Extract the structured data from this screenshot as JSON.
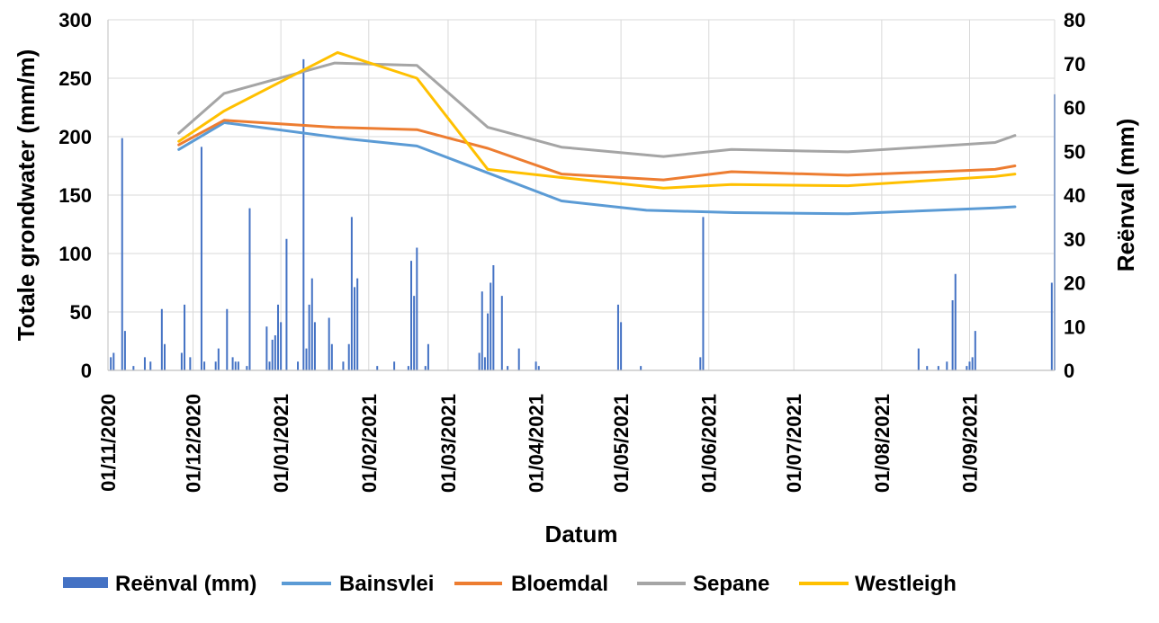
{
  "chart_data": {
    "type": "line",
    "xlabel": "Datum",
    "ylabel_left": "Totale grondwater (mm/m)",
    "ylabel_right": "Reënval (mm)",
    "ylim_left": [
      0,
      300
    ],
    "ylim_right": [
      0,
      80
    ],
    "yticks_left": [
      "0",
      "50",
      "100",
      "150",
      "200",
      "250",
      "300"
    ],
    "yticks_right": [
      "0",
      "10",
      "20",
      "30",
      "40",
      "50",
      "60",
      "70",
      "80"
    ],
    "xlim": [
      "2020-11-01",
      "2021-10-01"
    ],
    "x_tick_labels": [
      "01/11/2020",
      "01/12/2020",
      "01/01/2021",
      "01/02/2021",
      "01/03/2021",
      "01/04/2021",
      "01/05/2021",
      "01/06/2021",
      "01/07/2021",
      "01/08/2021",
      "01/09/2021"
    ],
    "x_tick_dates": [
      "2020-11-01",
      "2020-12-01",
      "2021-01-01",
      "2021-02-01",
      "2021-03-01",
      "2021-04-01",
      "2021-05-01",
      "2021-06-01",
      "2021-07-01",
      "2021-08-01",
      "2021-09-01"
    ],
    "grid": true,
    "legend_position": "bottom",
    "bars": {
      "name": "Reënval (mm)",
      "axis": "right",
      "color": "#4472c4",
      "points": [
        [
          "2020-11-02",
          3
        ],
        [
          "2020-11-03",
          4
        ],
        [
          "2020-11-06",
          53
        ],
        [
          "2020-11-07",
          9
        ],
        [
          "2020-11-10",
          1
        ],
        [
          "2020-11-14",
          3
        ],
        [
          "2020-11-16",
          2
        ],
        [
          "2020-11-20",
          14
        ],
        [
          "2020-11-21",
          6
        ],
        [
          "2020-11-27",
          4
        ],
        [
          "2020-11-28",
          15
        ],
        [
          "2020-11-30",
          3
        ],
        [
          "2020-12-04",
          51
        ],
        [
          "2020-12-05",
          2
        ],
        [
          "2020-12-09",
          2
        ],
        [
          "2020-12-10",
          5
        ],
        [
          "2020-12-13",
          14
        ],
        [
          "2020-12-15",
          3
        ],
        [
          "2020-12-16",
          2
        ],
        [
          "2020-12-17",
          2
        ],
        [
          "2020-12-20",
          1
        ],
        [
          "2020-12-21",
          37
        ],
        [
          "2020-12-27",
          10
        ],
        [
          "2020-12-28",
          2
        ],
        [
          "2020-12-29",
          7
        ],
        [
          "2020-12-30",
          8
        ],
        [
          "2020-12-31",
          15
        ],
        [
          "2021-01-01",
          11
        ],
        [
          "2021-01-03",
          30
        ],
        [
          "2021-01-07",
          2
        ],
        [
          "2021-01-09",
          71
        ],
        [
          "2021-01-10",
          5
        ],
        [
          "2021-01-11",
          15
        ],
        [
          "2021-01-12",
          21
        ],
        [
          "2021-01-13",
          11
        ],
        [
          "2021-01-18",
          12
        ],
        [
          "2021-01-19",
          6
        ],
        [
          "2021-01-23",
          2
        ],
        [
          "2021-01-25",
          6
        ],
        [
          "2021-01-26",
          35
        ],
        [
          "2021-01-27",
          19
        ],
        [
          "2021-01-28",
          21
        ],
        [
          "2021-02-04",
          1
        ],
        [
          "2021-02-10",
          2
        ],
        [
          "2021-02-15",
          1
        ],
        [
          "2021-02-16",
          25
        ],
        [
          "2021-02-17",
          17
        ],
        [
          "2021-02-18",
          28
        ],
        [
          "2021-02-21",
          1
        ],
        [
          "2021-02-22",
          6
        ],
        [
          "2021-03-12",
          4
        ],
        [
          "2021-03-13",
          18
        ],
        [
          "2021-03-14",
          3
        ],
        [
          "2021-03-15",
          13
        ],
        [
          "2021-03-16",
          20
        ],
        [
          "2021-03-17",
          24
        ],
        [
          "2021-03-20",
          17
        ],
        [
          "2021-03-22",
          1
        ],
        [
          "2021-03-26",
          5
        ],
        [
          "2021-04-01",
          2
        ],
        [
          "2021-04-02",
          1
        ],
        [
          "2021-04-30",
          15
        ],
        [
          "2021-05-01",
          11
        ],
        [
          "2021-05-08",
          1
        ],
        [
          "2021-05-29",
          3
        ],
        [
          "2021-05-30",
          35
        ],
        [
          "2021-08-14",
          5
        ],
        [
          "2021-08-17",
          1
        ],
        [
          "2021-08-21",
          1
        ],
        [
          "2021-08-24",
          2
        ],
        [
          "2021-08-26",
          16
        ],
        [
          "2021-08-27",
          22
        ],
        [
          "2021-08-31",
          1
        ],
        [
          "2021-09-01",
          2
        ],
        [
          "2021-09-02",
          3
        ],
        [
          "2021-09-03",
          9
        ],
        [
          "2021-09-30",
          20
        ],
        [
          "2021-10-01",
          63
        ]
      ]
    },
    "series": [
      {
        "name": "Bainsvlei",
        "axis": "left",
        "color": "#5b9bd5",
        "points": [
          [
            "2020-11-26",
            189
          ],
          [
            "2020-12-12",
            212
          ],
          [
            "2021-01-25",
            198
          ],
          [
            "2021-02-18",
            192
          ],
          [
            "2021-03-15",
            169
          ],
          [
            "2021-04-10",
            145
          ],
          [
            "2021-05-10",
            137
          ],
          [
            "2021-06-10",
            135
          ],
          [
            "2021-07-20",
            134
          ],
          [
            "2021-09-10",
            139
          ],
          [
            "2021-09-17",
            140
          ]
        ]
      },
      {
        "name": "Bloemdal",
        "axis": "left",
        "color": "#ed7d31",
        "points": [
          [
            "2020-11-26",
            193
          ],
          [
            "2020-12-12",
            214
          ],
          [
            "2021-01-20",
            208
          ],
          [
            "2021-02-18",
            206
          ],
          [
            "2021-03-15",
            190
          ],
          [
            "2021-04-10",
            168
          ],
          [
            "2021-05-16",
            163
          ],
          [
            "2021-06-09",
            170
          ],
          [
            "2021-07-20",
            167
          ],
          [
            "2021-09-10",
            172
          ],
          [
            "2021-09-17",
            175
          ]
        ]
      },
      {
        "name": "Sepane",
        "axis": "left",
        "color": "#a5a5a5",
        "points": [
          [
            "2020-11-26",
            203
          ],
          [
            "2020-12-12",
            237
          ],
          [
            "2021-01-20",
            263
          ],
          [
            "2021-02-18",
            261
          ],
          [
            "2021-03-15",
            208
          ],
          [
            "2021-04-10",
            191
          ],
          [
            "2021-05-16",
            183
          ],
          [
            "2021-06-09",
            189
          ],
          [
            "2021-07-20",
            187
          ],
          [
            "2021-09-10",
            195
          ],
          [
            "2021-09-17",
            201
          ]
        ]
      },
      {
        "name": "Westleigh",
        "axis": "left",
        "color": "#ffc000",
        "points": [
          [
            "2020-11-26",
            196
          ],
          [
            "2020-12-12",
            222
          ],
          [
            "2021-01-21",
            272
          ],
          [
            "2021-02-18",
            250
          ],
          [
            "2021-03-15",
            172
          ],
          [
            "2021-04-10",
            165
          ],
          [
            "2021-05-16",
            156
          ],
          [
            "2021-06-09",
            159
          ],
          [
            "2021-07-20",
            158
          ],
          [
            "2021-09-10",
            166
          ],
          [
            "2021-09-17",
            168
          ]
        ]
      }
    ]
  }
}
